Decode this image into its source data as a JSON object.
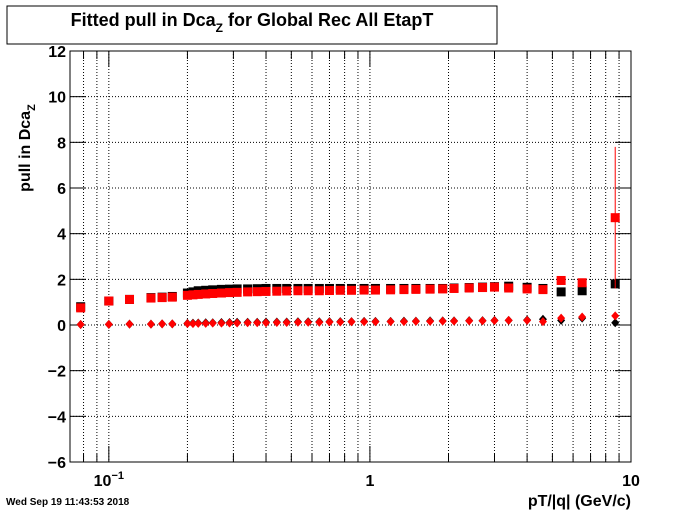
{
  "chart_data": {
    "type": "scatter",
    "title": [
      "Fitted pull in Dca",
      "Z",
      " for Global Rec All EtapT"
    ],
    "y_label": [
      "pull in Dca",
      "Z"
    ],
    "x_label": "pT/|q| (GeV/c)",
    "timestamp": "Wed Sep 19 11:43:53 2018",
    "log_x": true,
    "grid": true,
    "xlim": [
      0.071,
      10
    ],
    "ylim": [
      -6,
      12
    ],
    "xticks": [
      {
        "value": 0.1,
        "label": "10",
        "exponent": "−1"
      },
      1,
      10
    ],
    "xminor": [
      0.08,
      0.09,
      0.2,
      0.3,
      0.4,
      0.5,
      0.6,
      0.7,
      0.8,
      0.9,
      2,
      3,
      4,
      5,
      6,
      7,
      8,
      9
    ],
    "yticks": [
      {
        "value": -6,
        "label": "−6"
      },
      {
        "value": -4,
        "label": "−4"
      },
      {
        "value": -2,
        "label": "−2"
      },
      0,
      2,
      4,
      6,
      8,
      10,
      12
    ],
    "x": [
      0.078,
      0.1,
      0.12,
      0.145,
      0.16,
      0.175,
      0.2,
      0.21,
      0.22,
      0.235,
      0.25,
      0.27,
      0.29,
      0.31,
      0.34,
      0.37,
      0.4,
      0.44,
      0.48,
      0.53,
      0.58,
      0.64,
      0.7,
      0.77,
      0.85,
      0.95,
      1.05,
      1.2,
      1.35,
      1.5,
      1.7,
      1.9,
      2.1,
      2.4,
      2.7,
      3.0,
      3.4,
      4.0,
      4.6,
      5.4,
      6.5,
      8.7
    ],
    "series": [
      {
        "color": "#000000",
        "marker": "square",
        "values": [
          0.8,
          1.05,
          1.12,
          1.2,
          1.22,
          1.25,
          1.4,
          1.45,
          1.5,
          1.52,
          1.54,
          1.56,
          1.57,
          1.58,
          1.58,
          1.59,
          1.6,
          1.6,
          1.6,
          1.6,
          1.6,
          1.6,
          1.6,
          1.6,
          1.6,
          1.6,
          1.6,
          1.6,
          1.6,
          1.6,
          1.6,
          1.6,
          1.62,
          1.64,
          1.66,
          1.68,
          1.7,
          1.65,
          1.6,
          1.45,
          1.5,
          1.8
        ]
      },
      {
        "color": "#000000",
        "marker": "diamond",
        "values": [
          0.02,
          0.03,
          0.04,
          0.04,
          0.05,
          0.05,
          0.07,
          0.08,
          0.09,
          0.1,
          0.1,
          0.11,
          0.11,
          0.12,
          0.12,
          0.12,
          0.13,
          0.13,
          0.13,
          0.14,
          0.14,
          0.14,
          0.15,
          0.15,
          0.15,
          0.16,
          0.16,
          0.16,
          0.17,
          0.17,
          0.18,
          0.18,
          0.18,
          0.19,
          0.19,
          0.2,
          0.2,
          0.22,
          0.25,
          0.2,
          0.3,
          0.1
        ]
      },
      {
        "color": "#ff0000",
        "marker": "square",
        "values": [
          0.75,
          1.05,
          1.12,
          1.18,
          1.2,
          1.22,
          1.3,
          1.32,
          1.34,
          1.36,
          1.38,
          1.4,
          1.42,
          1.43,
          1.45,
          1.46,
          1.47,
          1.48,
          1.49,
          1.5,
          1.5,
          1.5,
          1.51,
          1.52,
          1.52,
          1.53,
          1.53,
          1.54,
          1.55,
          1.56,
          1.57,
          1.58,
          1.6,
          1.62,
          1.64,
          1.66,
          1.62,
          1.58,
          1.55,
          1.95,
          1.85,
          4.7
        ],
        "errors": [
          0.03,
          0.03,
          0.03,
          0.03,
          0.03,
          0.03,
          0.03,
          0.03,
          0.03,
          0.03,
          0.03,
          0.03,
          0.03,
          0.03,
          0.03,
          0.03,
          0.03,
          0.03,
          0.03,
          0.03,
          0.03,
          0.03,
          0.03,
          0.03,
          0.03,
          0.03,
          0.03,
          0.03,
          0.03,
          0.03,
          0.03,
          0.03,
          0.03,
          0.03,
          0.03,
          0.03,
          0.03,
          0.03,
          0.03,
          0.03,
          0.03,
          3.1
        ]
      },
      {
        "color": "#ff0000",
        "marker": "diamond",
        "values": [
          0.02,
          0.03,
          0.04,
          0.04,
          0.05,
          0.05,
          0.06,
          0.06,
          0.07,
          0.07,
          0.08,
          0.08,
          0.09,
          0.09,
          0.1,
          0.1,
          0.1,
          0.11,
          0.11,
          0.12,
          0.12,
          0.12,
          0.13,
          0.13,
          0.14,
          0.14,
          0.14,
          0.15,
          0.15,
          0.16,
          0.16,
          0.17,
          0.17,
          0.18,
          0.18,
          0.19,
          0.2,
          0.2,
          0.15,
          0.3,
          0.35,
          0.4
        ]
      }
    ]
  }
}
